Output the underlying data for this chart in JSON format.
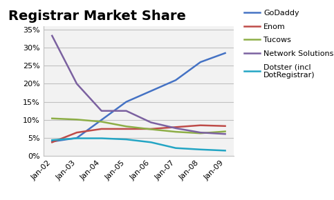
{
  "title": "Registrar Market Share",
  "x_labels": [
    "Jan-02",
    "Jan-03",
    "Jan-04",
    "Jan-05",
    "Jan-06",
    "Jan-07",
    "Jan-08",
    "Jan-09"
  ],
  "series": [
    {
      "name": "GoDaddy",
      "color": "#4472C4",
      "values": [
        0.04,
        0.05,
        0.1,
        0.15,
        0.18,
        0.21,
        0.26,
        0.285
      ]
    },
    {
      "name": "Enom",
      "color": "#BE4B48",
      "values": [
        0.038,
        0.065,
        0.075,
        0.075,
        0.075,
        0.08,
        0.085,
        0.083
      ]
    },
    {
      "name": "Tucows",
      "color": "#8DAE46",
      "values": [
        0.104,
        0.101,
        0.095,
        0.082,
        0.074,
        0.067,
        0.063,
        0.068
      ]
    },
    {
      "name": "Network Solutions",
      "color": "#7B61A0",
      "values": [
        0.333,
        0.2,
        0.125,
        0.125,
        0.093,
        0.077,
        0.065,
        0.061
      ]
    },
    {
      "name": "Dotster (incl\nDotRegistrar)",
      "color": "#23A5C4",
      "values": [
        0.044,
        0.049,
        0.049,
        0.046,
        0.038,
        0.022,
        0.018,
        0.015
      ]
    }
  ],
  "ylim": [
    0,
    0.36
  ],
  "yticks": [
    0,
    0.05,
    0.1,
    0.15,
    0.2,
    0.25,
    0.3,
    0.35
  ],
  "plot_background_color": "#F2F2F2",
  "legend_background_color": "#FFFFFF",
  "figure_background_color": "#FFFFFF",
  "grid_color": "#C0C0C0",
  "title_fontsize": 14,
  "tick_fontsize": 8,
  "legend_fontsize": 8,
  "figsize": [
    4.83,
    2.9
  ],
  "dpi": 100
}
